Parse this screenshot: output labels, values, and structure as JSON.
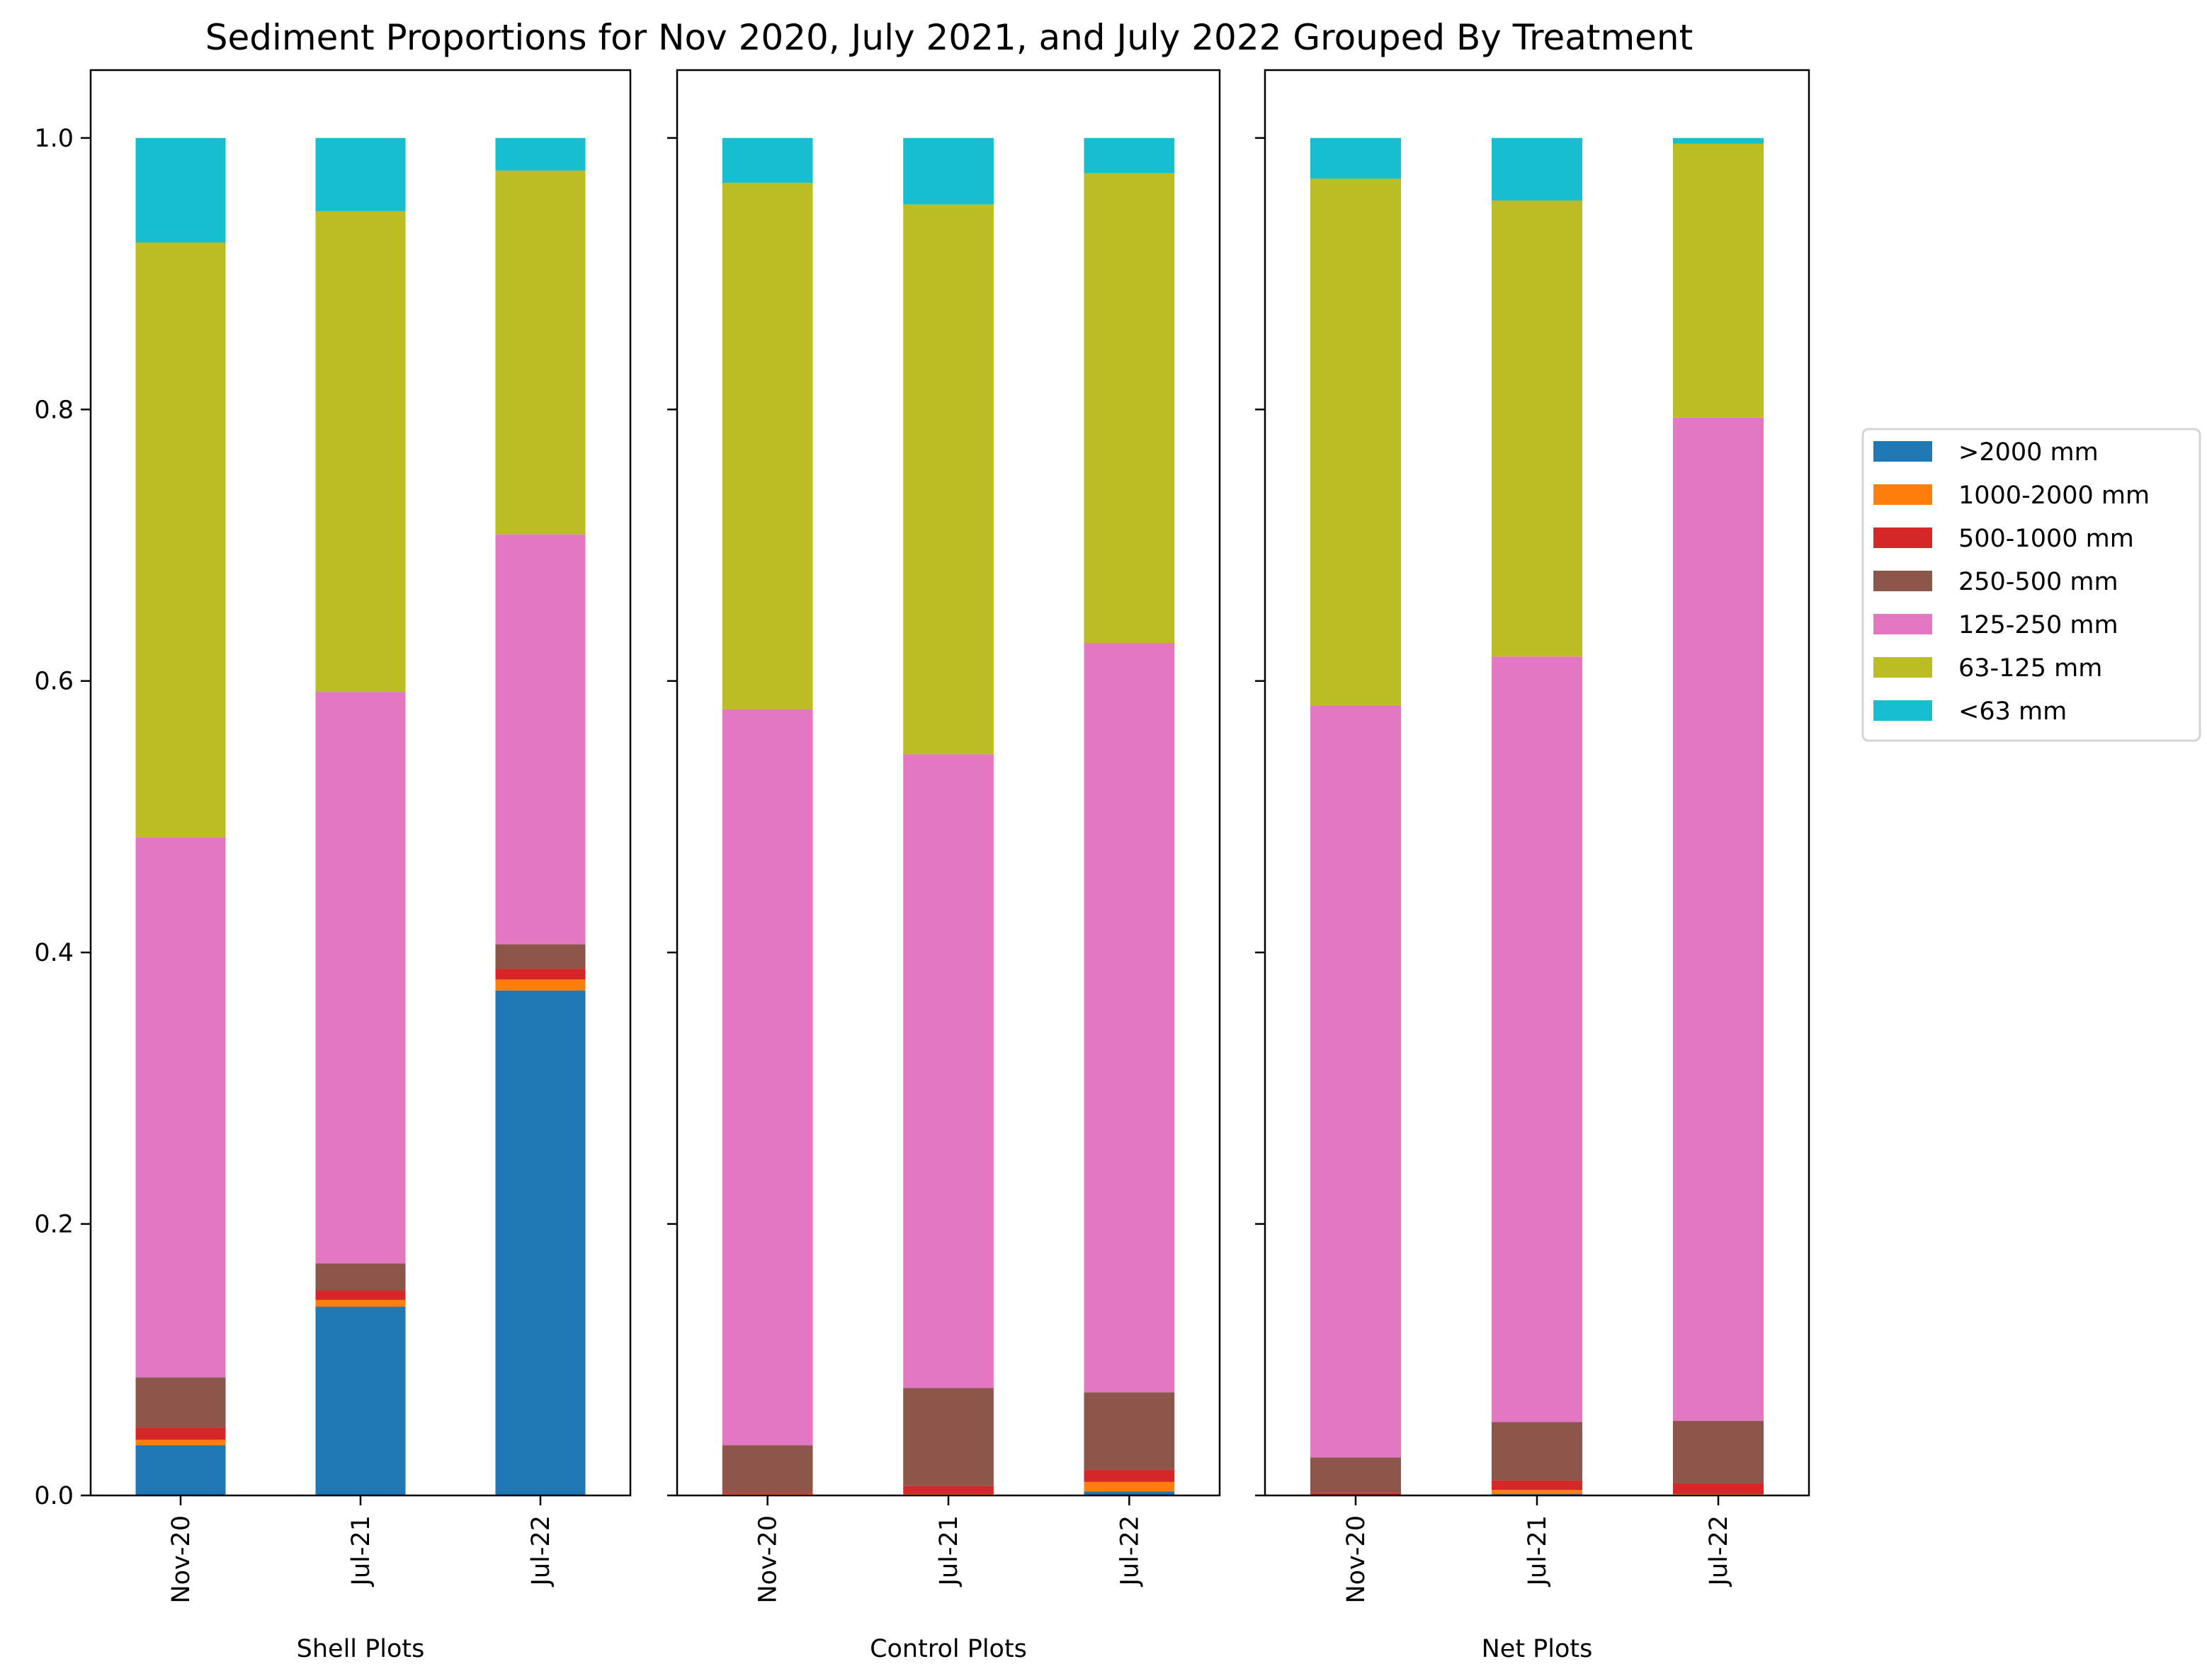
{
  "chart_data": {
    "type": "bar",
    "stacked": true,
    "title": "Sediment Proportions for Nov 2020, July 2021, and July 2022 Grouped By Treatment",
    "ylim": [
      0,
      1.05
    ],
    "yticks": [
      0.0,
      0.2,
      0.4,
      0.6,
      0.8,
      1.0
    ],
    "ytick_labels": [
      "0.0",
      "0.2",
      "0.4",
      "0.6",
      "0.8",
      "1.0"
    ],
    "grid": false,
    "legend_position": "right",
    "series_names": [
      ">2000 mm",
      "1000-2000 mm",
      "500-1000 mm",
      "250-500 mm",
      "125-250 mm",
      "63-125 mm",
      "<63 mm"
    ],
    "series_colors": [
      "#1f77b4",
      "#ff7f0e",
      "#d62728",
      "#8c564b",
      "#e377c2",
      "#bcbd22",
      "#17becf"
    ],
    "panels": [
      {
        "xlabel": "Shell Plots",
        "categories": [
          "Nov-20",
          "Jul-21",
          "Jul-22"
        ],
        "series": [
          {
            "name": ">2000 mm",
            "values": [
              0.037,
              0.139,
              0.372
            ]
          },
          {
            "name": "1000-2000 mm",
            "values": [
              0.004,
              0.005,
              0.008
            ]
          },
          {
            "name": "500-1000 mm",
            "values": [
              0.009,
              0.007,
              0.008
            ]
          },
          {
            "name": "250-500 mm",
            "values": [
              0.037,
              0.02,
              0.018
            ]
          },
          {
            "name": "125-250 mm",
            "values": [
              0.398,
              0.421,
              0.302
            ]
          },
          {
            "name": "63-125 mm",
            "values": [
              0.438,
              0.354,
              0.268
            ]
          },
          {
            "name": "<63 mm",
            "values": [
              0.077,
              0.054,
              0.024
            ]
          }
        ]
      },
      {
        "xlabel": "Control Plots",
        "categories": [
          "Nov-20",
          "Jul-21",
          "Jul-22"
        ],
        "series": [
          {
            "name": ">2000 mm",
            "values": [
              0.0,
              0.0,
              0.003
            ]
          },
          {
            "name": "1000-2000 mm",
            "values": [
              0.001,
              0.001,
              0.007
            ]
          },
          {
            "name": "500-1000 mm",
            "values": [
              0.001,
              0.006,
              0.009
            ]
          },
          {
            "name": "250-500 mm",
            "values": [
              0.035,
              0.072,
              0.057
            ]
          },
          {
            "name": "125-250 mm",
            "values": [
              0.542,
              0.467,
              0.552
            ]
          },
          {
            "name": "63-125 mm",
            "values": [
              0.388,
              0.405,
              0.346
            ]
          },
          {
            "name": "<63 mm",
            "values": [
              0.033,
              0.049,
              0.026
            ]
          }
        ]
      },
      {
        "xlabel": "Net Plots",
        "categories": [
          "Nov-20",
          "Jul-21",
          "Jul-22"
        ],
        "series": [
          {
            "name": ">2000 mm",
            "values": [
              0.0,
              0.001,
              0.0
            ]
          },
          {
            "name": "1000-2000 mm",
            "values": [
              0.0,
              0.003,
              0.001
            ]
          },
          {
            "name": "500-1000 mm",
            "values": [
              0.002,
              0.007,
              0.008
            ]
          },
          {
            "name": "250-500 mm",
            "values": [
              0.026,
              0.043,
              0.046
            ]
          },
          {
            "name": "125-250 mm",
            "values": [
              0.554,
              0.564,
              0.739
            ]
          },
          {
            "name": "63-125 mm",
            "values": [
              0.388,
              0.336,
              0.202
            ]
          },
          {
            "name": "<63 mm",
            "values": [
              0.03,
              0.046,
              0.004
            ]
          }
        ]
      }
    ]
  }
}
